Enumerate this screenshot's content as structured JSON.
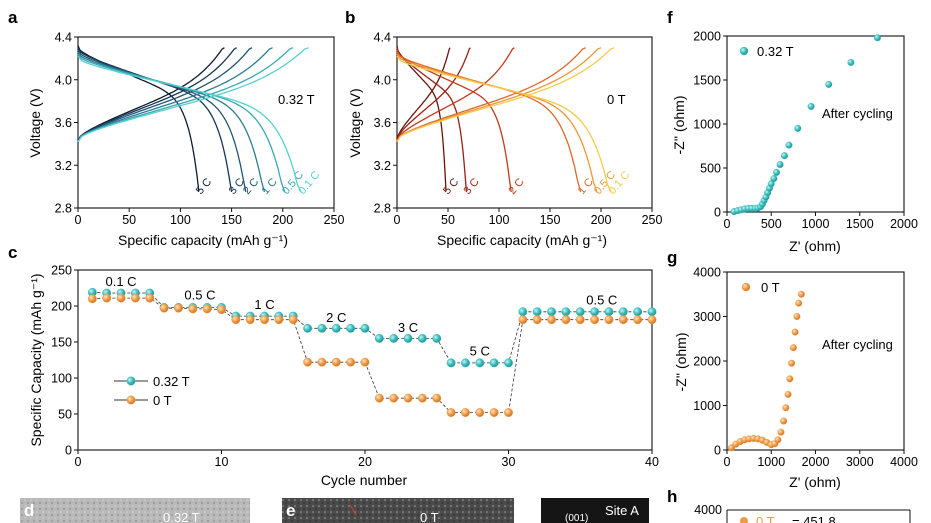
{
  "panels": {
    "a": {
      "letter": "a",
      "chart_data": {
        "type": "line",
        "xlabel": "Specific capacity (mAh g⁻¹)",
        "ylabel": "Voltage (V)",
        "xlim": [
          0,
          250
        ],
        "ylim": [
          2.8,
          4.4
        ],
        "xticks": [
          "0",
          "50",
          "100",
          "150",
          "200",
          "250"
        ],
        "yticks": [
          "2.8",
          "3.2",
          "3.6",
          "4.0",
          "4.4"
        ],
        "annotation": "0.32 T",
        "series": [
          {
            "name": "5 C",
            "color": "#0c1c33",
            "charge_cap": 143,
            "discharge_cap": 118
          },
          {
            "name": "3 C",
            "color": "#163656",
            "charge_cap": 155,
            "discharge_cap": 150
          },
          {
            "name": "2 C",
            "color": "#1f5574",
            "charge_cap": 170,
            "discharge_cap": 164
          },
          {
            "name": "1 C",
            "color": "#2a7d92",
            "charge_cap": 190,
            "discharge_cap": 182
          },
          {
            "name": "0.5 C",
            "color": "#3aa7b3",
            "charge_cap": 210,
            "discharge_cap": 202
          },
          {
            "name": "0.1 C",
            "color": "#55d0d2",
            "charge_cap": 225,
            "discharge_cap": 218
          }
        ]
      }
    },
    "b": {
      "letter": "b",
      "chart_data": {
        "type": "line",
        "xlabel": "Specific capacity (mAh g⁻¹)",
        "ylabel": "Voltage (V)",
        "xlim": [
          0,
          250
        ],
        "ylim": [
          2.8,
          4.4
        ],
        "xticks": [
          "0",
          "50",
          "100",
          "150",
          "200",
          "250"
        ],
        "yticks": [
          "2.8",
          "3.2",
          "3.6",
          "4.0",
          "4.4"
        ],
        "annotation": "0 T",
        "series": [
          {
            "name": "5 C",
            "color": "#6a1408",
            "charge_cap": 52,
            "discharge_cap": 48
          },
          {
            "name": "3 C",
            "color": "#9a1f10",
            "charge_cap": 72,
            "discharge_cap": 68
          },
          {
            "name": "2 C",
            "color": "#c23a1a",
            "charge_cap": 115,
            "discharge_cap": 112
          },
          {
            "name": "1 C",
            "color": "#e0672a",
            "charge_cap": 185,
            "discharge_cap": 180
          },
          {
            "name": "0.5 C",
            "color": "#f09638",
            "charge_cap": 200,
            "discharge_cap": 196
          },
          {
            "name": "0.1 C",
            "color": "#f4cc4a",
            "charge_cap": 213,
            "discharge_cap": 210
          }
        ]
      }
    },
    "c": {
      "letter": "c",
      "chart_data": {
        "type": "scatter",
        "xlabel": "Cycle number",
        "ylabel": "Specific Capacity (mAh g⁻¹)",
        "xlim": [
          0,
          40
        ],
        "ylim": [
          0,
          250
        ],
        "xticks": [
          "0",
          "10",
          "20",
          "30",
          "40"
        ],
        "yticks": [
          "0",
          "50",
          "100",
          "150",
          "200",
          "250"
        ],
        "legend_position": "bottom-left",
        "series": [
          {
            "name": "0.32 T",
            "color": "#3bbcbc",
            "x": [
              1,
              2,
              3,
              4,
              5,
              6,
              7,
              8,
              9,
              10,
              11,
              12,
              13,
              14,
              15,
              16,
              17,
              18,
              19,
              20,
              21,
              22,
              23,
              24,
              25,
              26,
              27,
              28,
              29,
              30,
              31,
              32,
              33,
              34,
              35,
              36,
              37,
              38,
              39,
              40
            ],
            "y": [
              219,
              218,
              218,
              218,
              218,
              198,
              198,
              198,
              198,
              198,
              186,
              186,
              186,
              186,
              186,
              169,
              169,
              169,
              169,
              169,
              155,
              155,
              155,
              155,
              155,
              121,
              121,
              121,
              121,
              121,
              192,
              192,
              192,
              192,
              192,
              192,
              192,
              192,
              192,
              192
            ]
          },
          {
            "name": "0 T",
            "color": "#ef9a46",
            "x": [
              1,
              2,
              3,
              4,
              5,
              6,
              7,
              8,
              9,
              10,
              11,
              12,
              13,
              14,
              15,
              16,
              17,
              18,
              19,
              20,
              21,
              22,
              23,
              24,
              25,
              26,
              27,
              28,
              29,
              30,
              31,
              32,
              33,
              34,
              35,
              36,
              37,
              38,
              39,
              40
            ],
            "y": [
              210,
              211,
              211,
              211,
              211,
              197,
              197,
              196,
              196,
              195,
              181,
              181,
              181,
              181,
              181,
              122,
              122,
              122,
              122,
              122,
              72,
              72,
              72,
              72,
              72,
              52,
              52,
              52,
              52,
              52,
              181,
              181,
              181,
              181,
              181,
              181,
              181,
              181,
              181,
              181
            ]
          }
        ],
        "rate_labels": [
          {
            "text": "0.1 C",
            "x": 3,
            "y": 228
          },
          {
            "text": "0.5 C",
            "x": 8.5,
            "y": 209
          },
          {
            "text": "1 C",
            "x": 13,
            "y": 196
          },
          {
            "text": "2 C",
            "x": 18,
            "y": 178
          },
          {
            "text": "3 C",
            "x": 23,
            "y": 164
          },
          {
            "text": "5 C",
            "x": 28,
            "y": 131
          },
          {
            "text": "0.5 C",
            "x": 36.5,
            "y": 202
          }
        ]
      }
    },
    "f": {
      "letter": "f",
      "chart_data": {
        "type": "scatter",
        "xlabel": "Z' (ohm)",
        "ylabel": "-Z'' (ohm)",
        "xlim": [
          0,
          2000
        ],
        "ylim": [
          0,
          2000
        ],
        "xticks": [
          "0",
          "500",
          "1000",
          "1500",
          "2000"
        ],
        "yticks": [
          "0",
          "500",
          "1000",
          "1500",
          "2000"
        ],
        "legend": "0.32 T",
        "note": "After cycling",
        "color": "#3bbcbc",
        "x": [
          80,
          120,
          160,
          200,
          240,
          280,
          320,
          350,
          380,
          400,
          420,
          440,
          460,
          480,
          500,
          530,
          560,
          600,
          650,
          700,
          800,
          950,
          1150,
          1400,
          1700
        ],
        "y": [
          5,
          15,
          25,
          35,
          40,
          40,
          40,
          45,
          60,
          90,
          130,
          170,
          220,
          270,
          320,
          380,
          450,
          540,
          640,
          760,
          950,
          1200,
          1450,
          1700,
          1980
        ]
      }
    },
    "g": {
      "letter": "g",
      "chart_data": {
        "type": "scatter",
        "xlabel": "Z' (ohm)",
        "ylabel": "-Z'' (ohm)",
        "xlim": [
          0,
          4000
        ],
        "ylim": [
          0,
          4000
        ],
        "xticks": [
          "0",
          "1000",
          "2000",
          "3000",
          "4000"
        ],
        "yticks": [
          "0",
          "1000",
          "2000",
          "3000",
          "4000"
        ],
        "legend": "0 T",
        "note": "After cycling",
        "color": "#ef9a46",
        "x": [
          100,
          200,
          300,
          400,
          500,
          600,
          700,
          800,
          900,
          1000,
          1080,
          1150,
          1220,
          1280,
          1330,
          1380,
          1420,
          1460,
          1500,
          1540,
          1580,
          1620,
          1680
        ],
        "y": [
          50,
          130,
          190,
          230,
          250,
          260,
          250,
          220,
          170,
          120,
          140,
          230,
          400,
          650,
          950,
          1250,
          1600,
          1950,
          2300,
          2650,
          3000,
          3300,
          3500
        ]
      }
    },
    "h": {
      "letter": "h",
      "ytick_top": "4000",
      "legend_partial": "0 T",
      "value_partial": "= 451.8"
    },
    "d": {
      "letter": "d",
      "label": "0.32 T"
    },
    "e": {
      "letter": "e",
      "label": "0 T"
    },
    "site": {
      "label": "Site A",
      "index": "(001)"
    }
  }
}
